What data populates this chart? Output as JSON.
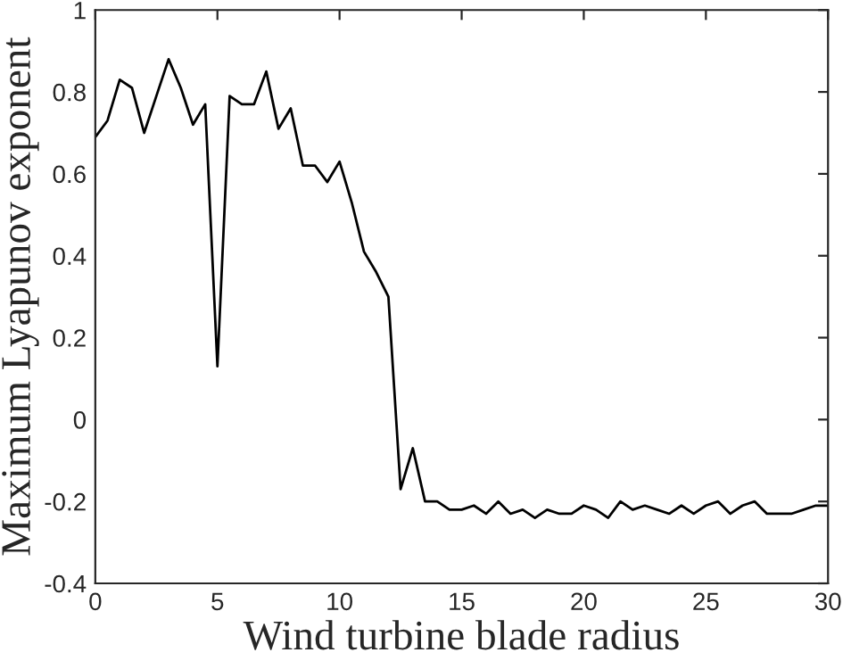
{
  "chart_data": {
    "type": "line",
    "xlabel": "Wind turbine blade radius",
    "ylabel": "Maximum Lyapunov exponent",
    "x": [
      0,
      0.5,
      1,
      1.5,
      2,
      2.5,
      3,
      3.5,
      4,
      4.5,
      5,
      5.5,
      6,
      6.5,
      7,
      7.5,
      8,
      8.5,
      9,
      9.5,
      10,
      10.5,
      11,
      11.5,
      12,
      12.5,
      13,
      13.5,
      14,
      14.5,
      15,
      15.5,
      16,
      16.5,
      17,
      17.5,
      18,
      18.5,
      19,
      19.5,
      20,
      20.5,
      21,
      21.5,
      22,
      22.5,
      23,
      23.5,
      24,
      24.5,
      25,
      25.5,
      26,
      26.5,
      27,
      27.5,
      28,
      28.5,
      29,
      29.5,
      30
    ],
    "series": [
      {
        "color": "#000000",
        "values": [
          0.69,
          0.73,
          0.83,
          0.81,
          0.7,
          0.79,
          0.88,
          0.81,
          0.72,
          0.77,
          0.13,
          0.79,
          0.77,
          0.77,
          0.85,
          0.71,
          0.76,
          0.62,
          0.62,
          0.58,
          0.63,
          0.53,
          0.41,
          0.36,
          0.3,
          -0.17,
          -0.07,
          -0.2,
          -0.2,
          -0.22,
          -0.22,
          -0.21,
          -0.23,
          -0.2,
          -0.23,
          -0.22,
          -0.24,
          -0.22,
          -0.23,
          -0.23,
          -0.21,
          -0.22,
          -0.24,
          -0.2,
          -0.22,
          -0.21,
          -0.22,
          -0.23,
          -0.21,
          -0.23,
          -0.21,
          -0.2,
          -0.23,
          -0.21,
          -0.2,
          -0.23,
          -0.23,
          -0.23,
          -0.22,
          -0.21,
          -0.21
        ]
      }
    ],
    "xlim": [
      0,
      30
    ],
    "xticks": [
      0,
      5,
      10,
      15,
      20,
      25,
      30
    ],
    "ylim": [
      -0.4,
      1
    ],
    "yticks": [
      -0.4,
      -0.2,
      0,
      0.2,
      0.4,
      0.6,
      0.8,
      1
    ],
    "grid": false,
    "legend": false,
    "marker": "none",
    "line_style": "solid"
  }
}
